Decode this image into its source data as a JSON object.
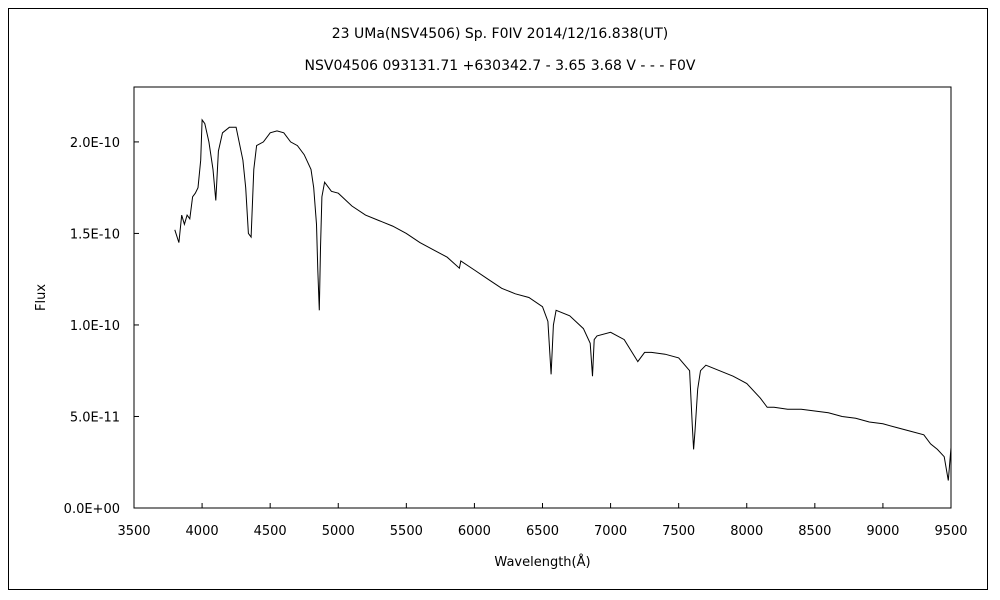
{
  "chart_data": {
    "type": "line",
    "title": "23 UMa(NSV4506)   Sp. F0IV   2014/12/16.838(UT)",
    "subtitle": "NSV04506 093131.71 +630342.7 - 3.65 3.68 V - - - F0V",
    "xlabel": "Wavelength(Å)",
    "ylabel": "Flux",
    "xlim": [
      3500,
      9500
    ],
    "ylim": [
      0,
      2.3e-10
    ],
    "x_ticks": [
      3500,
      4000,
      4500,
      5000,
      5500,
      6000,
      6500,
      7000,
      7500,
      8000,
      8500,
      9000,
      9500
    ],
    "x_tick_labels": [
      "3500",
      "4000",
      "4500",
      "5000",
      "5500",
      "6000",
      "6500",
      "7000",
      "7500",
      "8000",
      "8500",
      "9000",
      "9500"
    ],
    "y_ticks": [
      0,
      5e-11,
      1e-10,
      1.5e-10,
      2e-10
    ],
    "y_tick_labels": [
      "0.0E+00",
      "5.0E-11",
      "1.0E-10",
      "1.5E-10",
      "2.0E-10"
    ],
    "grid": false,
    "line_color": "#000000",
    "series": [
      {
        "x": [
          3800,
          3830,
          3850,
          3870,
          3890,
          3910,
          3930,
          3950,
          3970,
          3990,
          4000,
          4020,
          4050,
          4080,
          4101,
          4120,
          4150,
          4200,
          4250,
          4300,
          4320,
          4340,
          4360,
          4380,
          4400,
          4450,
          4500,
          4550,
          4600,
          4650,
          4700,
          4750,
          4800,
          4820,
          4840,
          4850,
          4861,
          4870,
          4880,
          4900,
          4950,
          5000,
          5100,
          5200,
          5300,
          5400,
          5500,
          5600,
          5700,
          5800,
          5890,
          5900,
          6000,
          6100,
          6200,
          6300,
          6400,
          6500,
          6540,
          6563,
          6580,
          6600,
          6700,
          6800,
          6850,
          6867,
          6880,
          6900,
          7000,
          7100,
          7150,
          7200,
          7250,
          7300,
          7400,
          7500,
          7580,
          7600,
          7610,
          7620,
          7640,
          7660,
          7700,
          7800,
          7900,
          8000,
          8100,
          8150,
          8200,
          8300,
          8400,
          8500,
          8600,
          8700,
          8800,
          8900,
          9000,
          9100,
          9200,
          9300,
          9350,
          9400,
          9450,
          9480,
          9500
        ],
        "y": [
          1.52e-10,
          1.45e-10,
          1.6e-10,
          1.55e-10,
          1.6e-10,
          1.58e-10,
          1.7e-10,
          1.72e-10,
          1.75e-10,
          1.9e-10,
          2.12e-10,
          2.1e-10,
          2e-10,
          1.85e-10,
          1.68e-10,
          1.95e-10,
          2.05e-10,
          2.08e-10,
          2.08e-10,
          1.9e-10,
          1.75e-10,
          1.5e-10,
          1.48e-10,
          1.85e-10,
          1.98e-10,
          2e-10,
          2.05e-10,
          2.06e-10,
          2.05e-10,
          2e-10,
          1.98e-10,
          1.93e-10,
          1.85e-10,
          1.75e-10,
          1.55e-10,
          1.3e-10,
          1.08e-10,
          1.42e-10,
          1.7e-10,
          1.78e-10,
          1.73e-10,
          1.72e-10,
          1.65e-10,
          1.6e-10,
          1.57e-10,
          1.54e-10,
          1.5e-10,
          1.45e-10,
          1.41e-10,
          1.37e-10,
          1.31e-10,
          1.35e-10,
          1.3e-10,
          1.25e-10,
          1.2e-10,
          1.17e-10,
          1.15e-10,
          1.1e-10,
          1.02e-10,
          7.3e-11,
          1e-10,
          1.08e-10,
          1.05e-10,
          9.8e-11,
          9e-11,
          7.2e-11,
          9.2e-11,
          9.4e-11,
          9.6e-11,
          9.2e-11,
          8.6e-11,
          8e-11,
          8.5e-11,
          8.5e-11,
          8.4e-11,
          8.2e-11,
          7.5e-11,
          4.5e-11,
          3.2e-11,
          4.2e-11,
          6.5e-11,
          7.5e-11,
          7.8e-11,
          7.5e-11,
          7.2e-11,
          6.8e-11,
          6e-11,
          5.5e-11,
          5.5e-11,
          5.4e-11,
          5.4e-11,
          5.3e-11,
          5.2e-11,
          5e-11,
          4.9e-11,
          4.7e-11,
          4.6e-11,
          4.4e-11,
          4.2e-11,
          4e-11,
          3.5e-11,
          3.2e-11,
          2.8e-11,
          1.5e-11,
          3.3e-11
        ]
      }
    ]
  }
}
